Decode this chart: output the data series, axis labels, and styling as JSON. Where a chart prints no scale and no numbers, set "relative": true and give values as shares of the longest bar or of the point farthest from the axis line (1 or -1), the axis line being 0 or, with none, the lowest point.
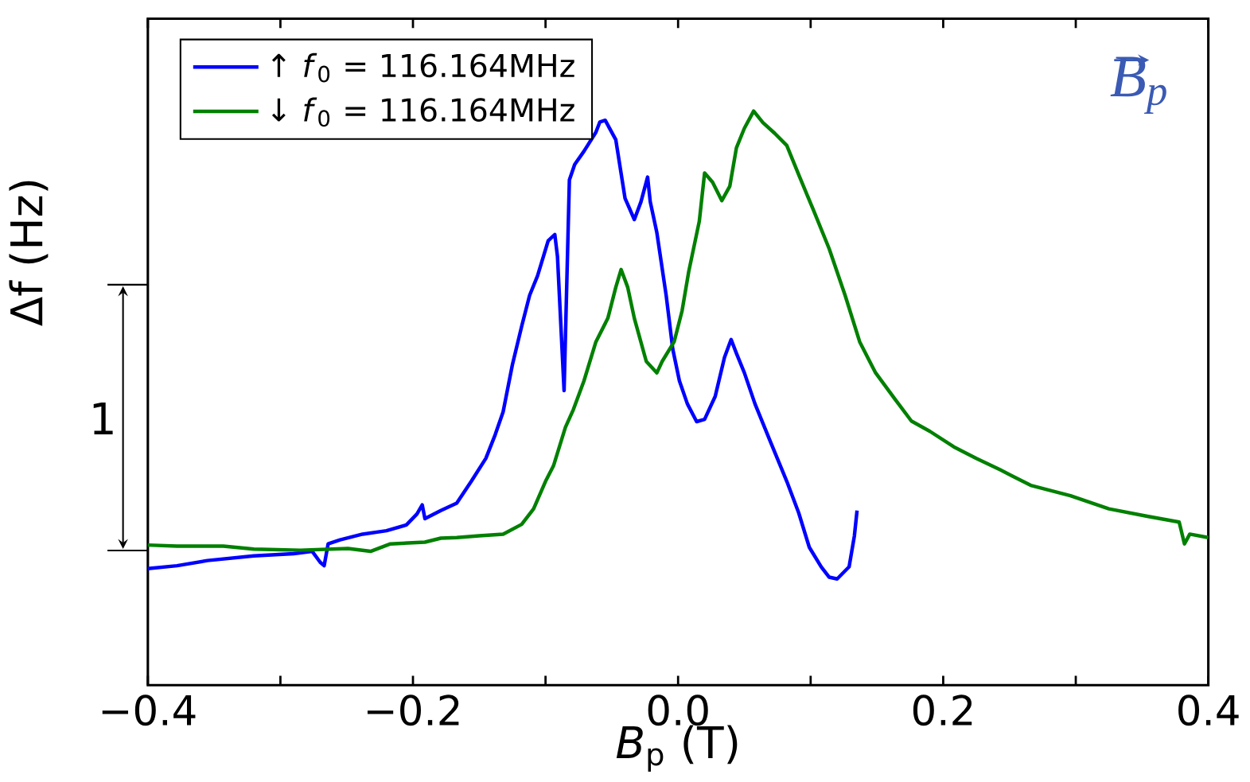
{
  "chart_data": {
    "type": "line",
    "relative": true,
    "xlabel": "*B*$_{p}$ (T)",
    "ylabel": "Δf (Hz)",
    "xlim": [
      -0.4,
      0.4
    ],
    "xticks": [
      {
        "value": -0.4,
        "label": "−0.4"
      },
      {
        "value": -0.3,
        "label": null
      },
      {
        "value": -0.2,
        "label": "−0.2"
      },
      {
        "value": -0.1,
        "label": null
      },
      {
        "value": 0.0,
        "label": "0.0"
      },
      {
        "value": 0.1,
        "label": null
      },
      {
        "value": 0.2,
        "label": "0.2"
      },
      {
        "value": 0.3,
        "label": null
      },
      {
        "value": 0.4,
        "label": "0.4"
      }
    ],
    "legend": "top left",
    "annotations": [
      "1",
      "B$_{p}$"
    ],
    "series": [
      {
        "name": "↑ *f*$_{0}$ = 116.164MHz",
        "color": "#0000ff",
        "x": [
          -0.4,
          -0.378,
          -0.355,
          -0.32,
          -0.29,
          -0.276,
          -0.27,
          -0.267,
          -0.264,
          -0.255,
          -0.238,
          -0.22,
          -0.205,
          -0.197,
          -0.193,
          -0.191,
          -0.179,
          -0.167,
          -0.156,
          -0.145,
          -0.138,
          -0.132,
          -0.125,
          -0.118,
          -0.112,
          -0.106,
          -0.098,
          -0.093,
          -0.091,
          -0.086,
          -0.082,
          -0.078,
          -0.071,
          -0.062,
          -0.059,
          -0.055,
          -0.047,
          -0.04,
          -0.033,
          -0.028,
          -0.023,
          -0.021,
          -0.016,
          -0.009,
          -0.004,
          0.001,
          0.007,
          0.014,
          0.02,
          0.028,
          0.035,
          0.04,
          0.044,
          0.05,
          0.058,
          0.07,
          0.082,
          0.091,
          0.099,
          0.108,
          0.114,
          0.12,
          0.129,
          0.133,
          0.135
        ],
        "values": [
          0.203,
          0.208,
          0.217,
          0.225,
          0.229,
          0.233,
          0.214,
          0.208,
          0.246,
          0.253,
          0.263,
          0.269,
          0.279,
          0.298,
          0.314,
          0.29,
          0.304,
          0.317,
          0.355,
          0.395,
          0.436,
          0.476,
          0.558,
          0.625,
          0.679,
          0.713,
          0.774,
          0.785,
          0.747,
          0.513,
          0.88,
          0.907,
          0.93,
          0.963,
          0.981,
          0.984,
          0.95,
          0.848,
          0.811,
          0.842,
          0.885,
          0.842,
          0.788,
          0.679,
          0.585,
          0.53,
          0.49,
          0.459,
          0.463,
          0.503,
          0.571,
          0.602,
          0.578,
          0.544,
          0.49,
          0.422,
          0.355,
          0.3,
          0.24,
          0.206,
          0.188,
          0.185,
          0.206,
          0.26,
          0.304
        ]
      },
      {
        "name": "↓ *f*$_{0}$ = 116.164MHz",
        "color": "#008000",
        "x": [
          -0.4,
          -0.378,
          -0.343,
          -0.32,
          -0.285,
          -0.249,
          -0.232,
          -0.217,
          -0.191,
          -0.179,
          -0.167,
          -0.15,
          -0.132,
          -0.118,
          -0.109,
          -0.1,
          -0.094,
          -0.085,
          -0.079,
          -0.071,
          -0.062,
          -0.053,
          -0.047,
          -0.043,
          -0.038,
          -0.033,
          -0.024,
          -0.016,
          -0.012,
          -0.003,
          0.003,
          0.008,
          0.016,
          0.02,
          0.026,
          0.033,
          0.039,
          0.044,
          0.05,
          0.057,
          0.064,
          0.073,
          0.082,
          0.091,
          0.102,
          0.114,
          0.126,
          0.137,
          0.149,
          0.164,
          0.176,
          0.19,
          0.208,
          0.225,
          0.243,
          0.266,
          0.296,
          0.325,
          0.354,
          0.378,
          0.382,
          0.386,
          0.4
        ],
        "values": [
          0.244,
          0.242,
          0.242,
          0.237,
          0.235,
          0.238,
          0.233,
          0.246,
          0.249,
          0.256,
          0.257,
          0.26,
          0.263,
          0.28,
          0.307,
          0.355,
          0.382,
          0.449,
          0.48,
          0.53,
          0.598,
          0.639,
          0.693,
          0.724,
          0.693,
          0.639,
          0.564,
          0.544,
          0.564,
          0.598,
          0.652,
          0.72,
          0.808,
          0.892,
          0.876,
          0.844,
          0.869,
          0.936,
          0.97,
          1.0,
          0.98,
          0.961,
          0.94,
          0.889,
          0.828,
          0.76,
          0.679,
          0.598,
          0.544,
          0.497,
          0.46,
          0.442,
          0.415,
          0.395,
          0.375,
          0.348,
          0.33,
          0.307,
          0.294,
          0.284,
          0.246,
          0.263,
          0.257
        ]
      }
    ]
  }
}
